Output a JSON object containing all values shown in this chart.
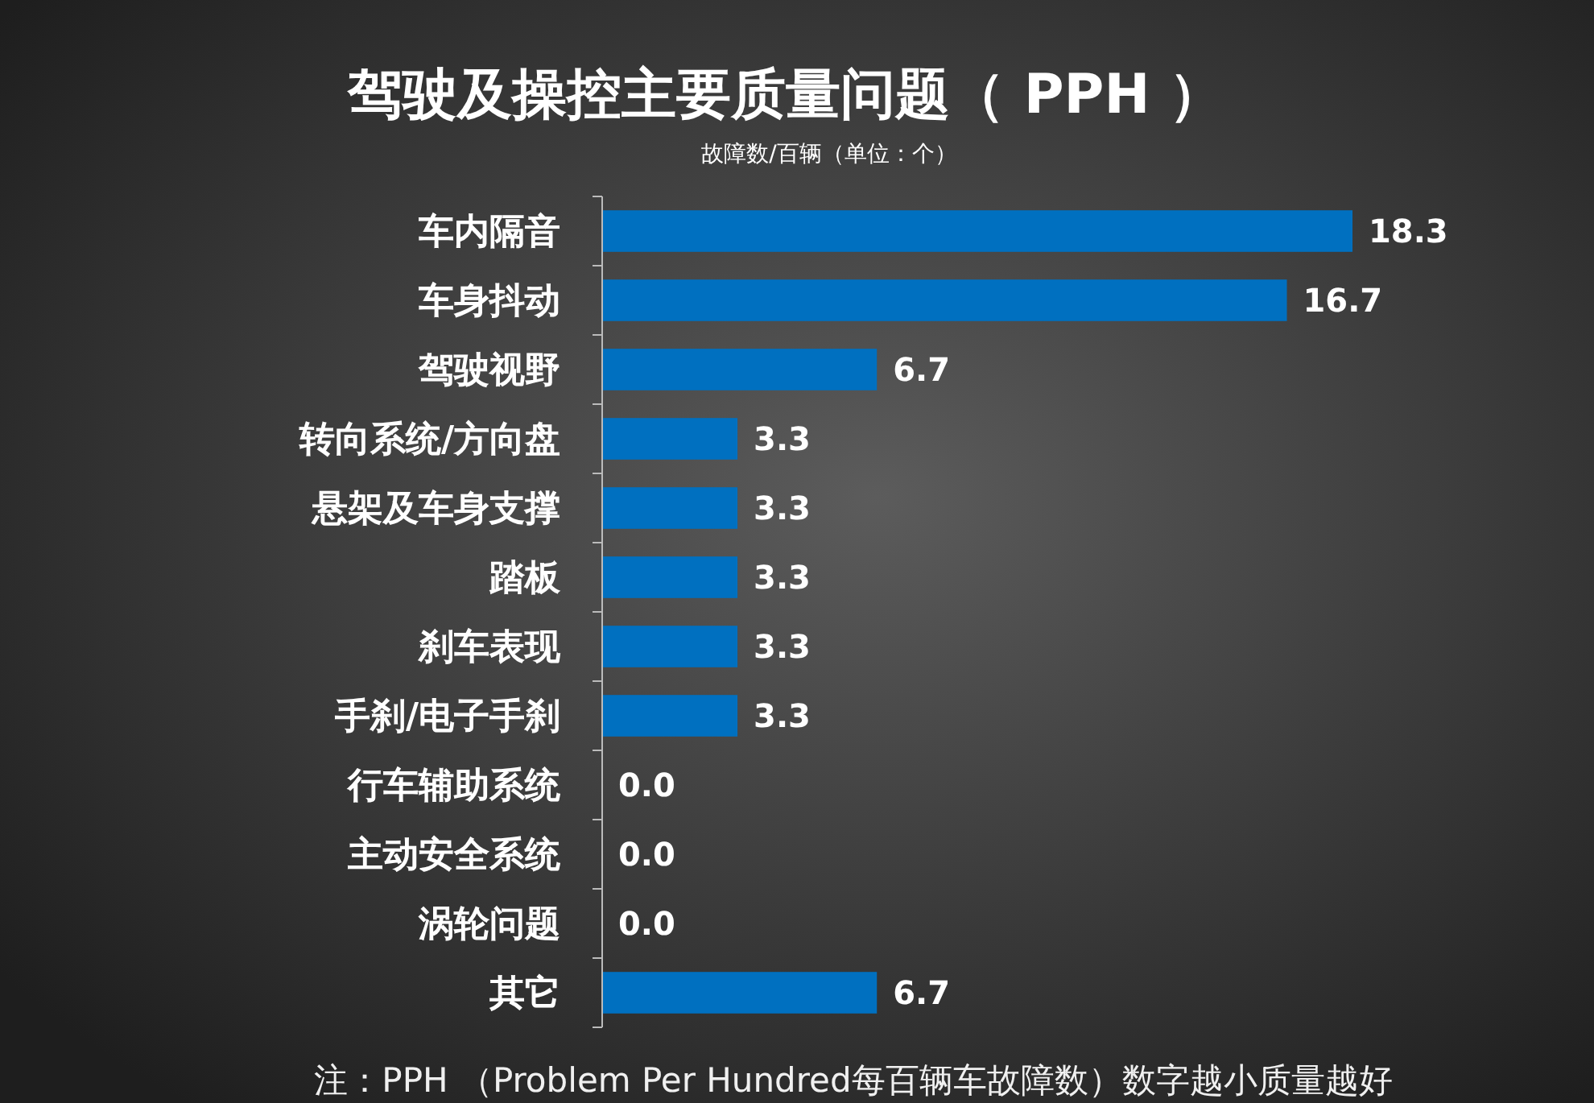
{
  "chart_data": {
    "type": "bar",
    "orientation": "horizontal",
    "title": "驾驶及操控主要质量问题（ PPH ）",
    "subtitle": "故障数/百辆（单位：个）",
    "categories": [
      "车内隔音",
      "车身抖动",
      "驾驶视野",
      "转向系统/方向盘",
      "悬架及车身支撑",
      "踏板",
      "刹车表现",
      "手刹/电子手刹",
      "行车辅助系统",
      "主动安全系统",
      "涡轮问题",
      "其它"
    ],
    "values": [
      18.3,
      16.7,
      6.7,
      3.3,
      3.3,
      3.3,
      3.3,
      3.3,
      0.0,
      0.0,
      0.0,
      6.7
    ],
    "color": "#0070c0",
    "value_labels": [
      "18.3",
      "16.7",
      "6.7",
      "3.3",
      "3.3",
      "3.3",
      "3.3",
      "3.3",
      "0.0",
      "0.0",
      "0.0",
      "6.7"
    ],
    "annotations": [
      "注：PPH （Problem Per Hundred每百辆车故障数）数字越小质量越好"
    ]
  }
}
